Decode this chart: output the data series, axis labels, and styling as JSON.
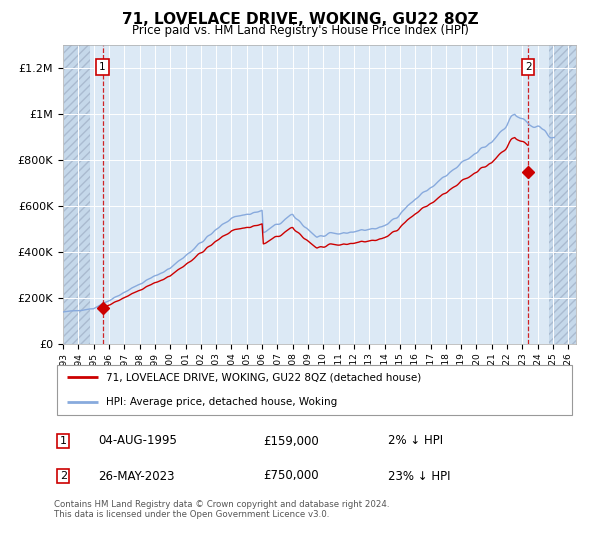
{
  "title": "71, LOVELACE DRIVE, WOKING, GU22 8QZ",
  "subtitle": "Price paid vs. HM Land Registry's House Price Index (HPI)",
  "ylim": [
    0,
    1300000
  ],
  "xlim_start": 1993.0,
  "xlim_end": 2026.5,
  "yticks": [
    0,
    200000,
    400000,
    600000,
    800000,
    1000000,
    1200000
  ],
  "ytick_labels": [
    "£0",
    "£200K",
    "£400K",
    "£600K",
    "£800K",
    "£1M",
    "£1.2M"
  ],
  "hpi_color": "#88aadd",
  "price_color": "#cc0000",
  "marker_color": "#cc0000",
  "dashed_color": "#cc0000",
  "bg_main": "#dce9f5",
  "bg_hatch": "#c5d8ea",
  "legend_entry1": "71, LOVELACE DRIVE, WOKING, GU22 8QZ (detached house)",
  "legend_entry2": "HPI: Average price, detached house, Woking",
  "sale1_date": 1995.58,
  "sale1_price": 159000,
  "sale1_label": "1",
  "sale2_date": 2023.38,
  "sale2_price": 750000,
  "sale2_label": "2",
  "hatch_left_end": 1994.75,
  "hatch_right_start": 2024.75,
  "footnote": "Contains HM Land Registry data © Crown copyright and database right 2024.\nThis data is licensed under the Open Government Licence v3.0."
}
